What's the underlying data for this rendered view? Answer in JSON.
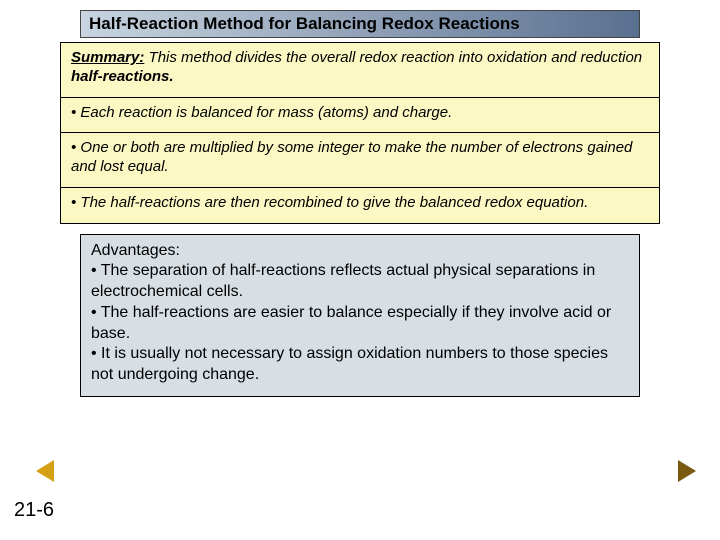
{
  "title": "Half-Reaction Method for Balancing Redox Reactions",
  "summary": {
    "lead_label": "Summary:",
    "intro_rest": "  This method divides the overall redox reaction into oxidation and reduction ",
    "intro_bold": "half-reactions.",
    "bullets": [
      "• Each reaction is balanced for mass (atoms) and charge.",
      "• One or both are multiplied by some integer to make the number of electrons gained and lost equal.",
      "• The half-reactions are then recombined to give the balanced redox equation."
    ]
  },
  "advantages": {
    "heading": "Advantages:",
    "bullets": [
      "• The separation of half-reactions reflects actual physical separations in electrochemical cells.",
      "• The half-reactions are easier to balance especially if they involve acid or base.",
      "• It is usually not necessary to assign oxidation numbers to those species not undergoing change."
    ]
  },
  "page_number": "21-6",
  "colors": {
    "title_grad_start": "#c8d4e0",
    "title_grad_end": "#5a7090",
    "summary_bg": "#fbf8c4",
    "adv_bg": "#d7dfe5"
  }
}
